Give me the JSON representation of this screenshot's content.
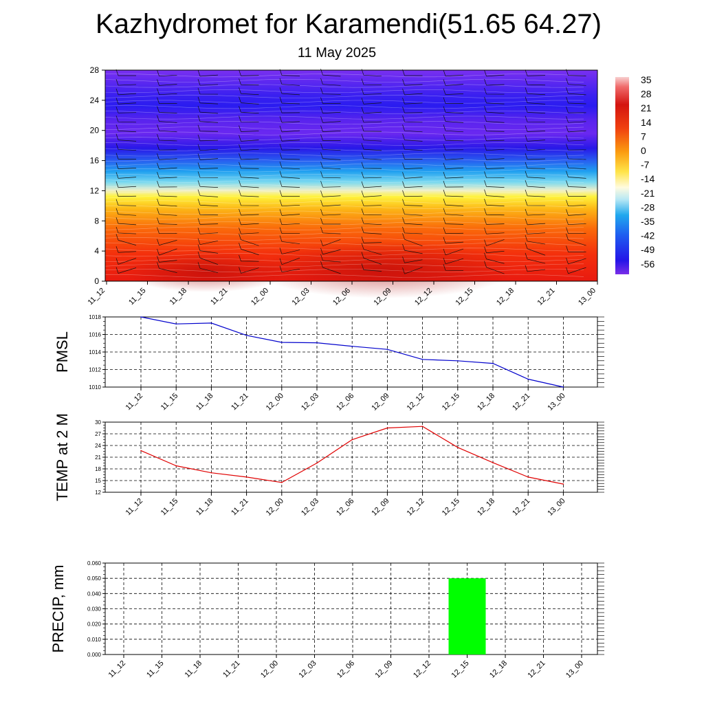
{
  "title": "Kazhydromet for Karamendi(51.65 64.27)",
  "subtitle": "11 May 2025",
  "colors": {
    "pmsl_line": "#0000cc",
    "temp_line": "#e00000",
    "precip_bar": "#00ff00",
    "grid": "#000000"
  },
  "chart_data": [
    {
      "type": "heatmap",
      "name": "temperature-height-section",
      "x_tick_labels": [
        "11_12",
        "11_15",
        "11_18",
        "11_21",
        "12_00",
        "12_03",
        "12_06",
        "12_09",
        "12_12",
        "12_15",
        "12_18",
        "12_21",
        "13_00"
      ],
      "y_ticks": [
        0,
        4,
        8,
        12,
        16,
        20,
        24,
        28
      ],
      "ylim": [
        0,
        28
      ],
      "colorbar_labels": [
        "35",
        "28",
        "21",
        "14",
        "7",
        "0",
        "-7",
        "-14",
        "-21",
        "-28",
        "-35",
        "-42",
        "-49",
        "-56"
      ],
      "colorbar_range": [
        -60,
        38
      ],
      "wind_barbs": true
    },
    {
      "type": "line",
      "name": "pmsl",
      "ylabel": "PMSL",
      "x_tick_labels": [
        "11_12",
        "11_15",
        "11_18",
        "11_21",
        "12_00",
        "12_03",
        "12_06",
        "12_09",
        "12_12",
        "12_15",
        "12_18",
        "12_21",
        "13_00"
      ],
      "y_ticks": [
        1010,
        1012,
        1014,
        1016,
        1018
      ],
      "ylim": [
        1010,
        1018
      ],
      "values": [
        1018.0,
        1017.2,
        1017.3,
        1015.9,
        1015.1,
        1015.05,
        1014.65,
        1014.3,
        1013.15,
        1013.0,
        1012.7,
        1010.9,
        1010.0
      ],
      "grid": true
    },
    {
      "type": "line",
      "name": "temp-2m",
      "ylabel": "TEMP at 2 M",
      "x_tick_labels": [
        "11_12",
        "11_15",
        "11_18",
        "11_21",
        "12_00",
        "12_03",
        "12_06",
        "12_09",
        "12_12",
        "12_15",
        "12_18",
        "12_21",
        "13_00"
      ],
      "y_ticks": [
        12,
        15,
        18,
        21,
        24,
        27,
        30
      ],
      "ylim": [
        12,
        30
      ],
      "values": [
        22.7,
        18.8,
        17.0,
        15.9,
        14.5,
        19.5,
        25.5,
        28.5,
        28.9,
        23.5,
        19.6,
        15.9,
        14.1
      ],
      "grid": true
    },
    {
      "type": "bar",
      "name": "precip",
      "ylabel": "PRECIP, mm",
      "categories": [
        "11_12",
        "11_15",
        "11_18",
        "11_21",
        "12_00",
        "12_03",
        "12_06",
        "12_09",
        "12_12",
        "12_15",
        "12_18",
        "12_21",
        "13_00"
      ],
      "values": [
        0,
        0,
        0,
        0,
        0,
        0,
        0,
        0,
        0,
        0.05,
        0,
        0,
        0
      ],
      "y_tick_labels": [
        "0.000",
        "0.010",
        "0.020",
        "0.030",
        "0.040",
        "0.050",
        "0.060"
      ],
      "ylim": [
        0,
        0.06
      ],
      "grid": true
    }
  ]
}
